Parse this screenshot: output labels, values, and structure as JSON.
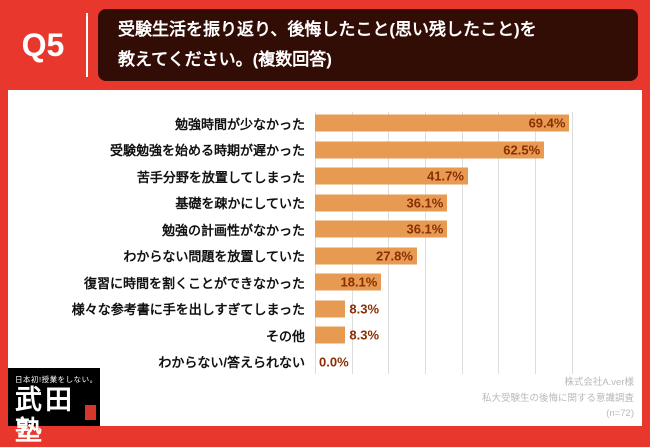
{
  "header": {
    "q_label": "Q5",
    "title_line1": "受験生活を振り返り、後悔したこと(思い残したこと)を",
    "title_line2": "教えてください。(複数回答)"
  },
  "chart_data": {
    "type": "bar",
    "orientation": "horizontal",
    "title": "受験生活を振り返り、後悔したこと(思い残したこと)を教えてください。(複数回答)",
    "categories": [
      "勉強時間が少なかった",
      "受験勉強を始める時期が遅かった",
      "苦手分野を放置してしまった",
      "基礎を疎かにしていた",
      "勉強の計画性がなかった",
      "わからない問題を放置していた",
      "復習に時間を割くことができなかった",
      "様々な参考書に手を出しすぎてしまった",
      "その他",
      "わからない/答えられない"
    ],
    "values": [
      69.4,
      62.5,
      41.7,
      36.1,
      36.1,
      27.8,
      18.1,
      8.3,
      8.3,
      0.0
    ],
    "value_labels": [
      "69.4%",
      "62.5%",
      "41.7%",
      "36.1%",
      "36.1%",
      "27.8%",
      "18.1%",
      "8.3%",
      "8.3%",
      "0.0%"
    ],
    "xlim": [
      0,
      75
    ],
    "gridlines": [
      0,
      10,
      20,
      30,
      40,
      50,
      60,
      70
    ],
    "grid": true,
    "legend": false,
    "bar_color": "#E79A52",
    "value_color": "#8B2E04"
  },
  "logo": {
    "tagline": "日本初!授業をしない。",
    "name": "武田塾"
  },
  "footer": {
    "source_line1": "株式会社A.ver様",
    "source_line2": "私大受験生の後悔に関する意識調査",
    "source_line3": "(n=72)"
  }
}
